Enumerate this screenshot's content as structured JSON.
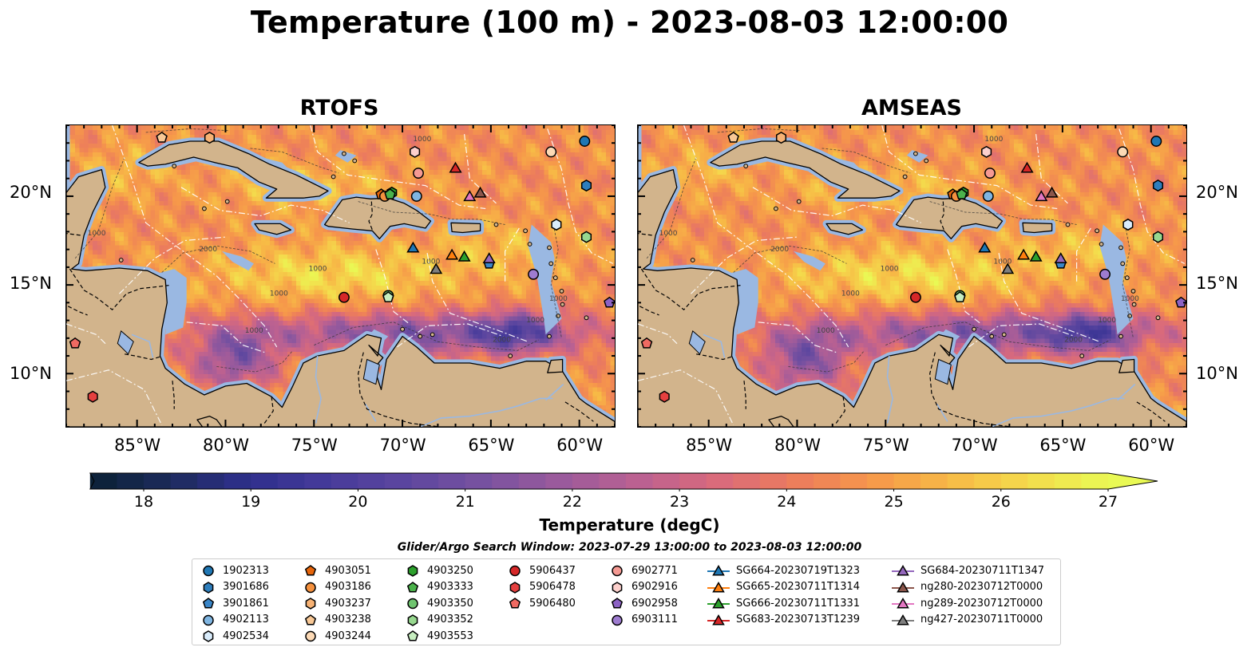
{
  "title": "Temperature (100 m) - 2023-08-03 12:00:00",
  "panels": [
    {
      "name": "RTOFS"
    },
    {
      "name": "AMSEAS"
    }
  ],
  "colorbar": {
    "label": "Temperature (degC)",
    "ticks": [
      "18",
      "19",
      "20",
      "21",
      "22",
      "23",
      "24",
      "25",
      "26",
      "27"
    ],
    "min": 17.5,
    "max": 27.0,
    "step": 0.25,
    "extend": "both",
    "colormap": "thermal",
    "colors": [
      "#0a2034",
      "#1c2b5a",
      "#2e2f8c",
      "#453a9a",
      "#5c469f",
      "#7751a0",
      "#9a5a9c",
      "#bb6191",
      "#d96a7c",
      "#ec7c5c",
      "#f6984a",
      "#f7ba46",
      "#f4dc4c",
      "#e9f954"
    ]
  },
  "search_window": "Glider/Argo Search Window: 2023-07-29 13:00:00 to 2023-08-03 12:00:00",
  "land_color": "#d2b48c",
  "shallow_color": "#9ab8e2",
  "chart_data": [
    {
      "type": "heatmap",
      "title": "RTOFS",
      "xlabel": "",
      "ylabel": "",
      "xlim": [
        -89,
        -58
      ],
      "ylim": [
        7,
        24
      ],
      "x_ticks": [
        "85°W",
        "80°W",
        "75°W",
        "70°W",
        "65°W",
        "60°W"
      ],
      "x_tick_values": [
        -85,
        -80,
        -75,
        -70,
        -65,
        -60
      ],
      "y_ticks": [
        "10°N",
        "15°N",
        "20°N"
      ],
      "y_tick_values": [
        10,
        15,
        20
      ],
      "grid": false
    },
    {
      "type": "heatmap",
      "title": "AMSEAS",
      "xlabel": "",
      "ylabel": "",
      "xlim": [
        -89,
        -58
      ],
      "ylim": [
        7,
        24
      ],
      "x_ticks": [
        "85°W",
        "80°W",
        "75°W",
        "70°W",
        "65°W",
        "60°W"
      ],
      "x_tick_values": [
        -85,
        -80,
        -75,
        -70,
        -65,
        -60
      ],
      "y_ticks": [
        "10°N",
        "15°N",
        "20°N"
      ],
      "y_tick_values": [
        10,
        15,
        20
      ],
      "grid": false
    }
  ],
  "observations": [
    {
      "id": "1902313",
      "kind": "argo",
      "marker": "circle",
      "color": "#1f77b4",
      "lon": -59.7,
      "lat": 23.1
    },
    {
      "id": "3901686",
      "kind": "argo",
      "marker": "hexagon",
      "color": "#2e7ebc",
      "lon": -59.6,
      "lat": 20.6
    },
    {
      "id": "3901861",
      "kind": "argo",
      "marker": "pentagon",
      "color": "#3a86c8",
      "lon": -65.1,
      "lat": 16.2
    },
    {
      "id": "4902113",
      "kind": "argo",
      "marker": "circle",
      "color": "#7fb5e1",
      "lon": -69.2,
      "lat": 20.0
    },
    {
      "id": "4902534",
      "kind": "argo",
      "marker": "hexagon",
      "color": "#d9ecfb",
      "lon": -61.3,
      "lat": 18.4
    },
    {
      "id": "4903051",
      "kind": "argo",
      "marker": "pentagon",
      "color": "#e6650b",
      "lon": -71.2,
      "lat": 20.1
    },
    {
      "id": "4903186",
      "kind": "argo",
      "marker": "circle",
      "color": "#f5913e",
      "lon": -71.0,
      "lat": 20.0
    },
    {
      "id": "4903237",
      "kind": "argo",
      "marker": "hexagon",
      "color": "#f7b274",
      "lon": -80.9,
      "lat": 23.3
    },
    {
      "id": "4903238",
      "kind": "argo",
      "marker": "pentagon",
      "color": "#f8c896",
      "lon": -83.6,
      "lat": 23.3
    },
    {
      "id": "4903244",
      "kind": "argo",
      "marker": "circle",
      "color": "#fcd9b5",
      "lon": -61.6,
      "lat": 22.5
    },
    {
      "id": "4903250",
      "kind": "argo",
      "marker": "hexagon",
      "color": "#2ca02c",
      "lon": -70.6,
      "lat": 20.2
    },
    {
      "id": "4903333",
      "kind": "argo",
      "marker": "pentagon",
      "color": "#4bb24b",
      "lon": -70.7,
      "lat": 20.1
    },
    {
      "id": "4903350",
      "kind": "argo",
      "marker": "circle",
      "color": "#6fc46f",
      "lon": -70.8,
      "lat": 14.4
    },
    {
      "id": "4903352",
      "kind": "argo",
      "marker": "hexagon",
      "color": "#97d88f",
      "lon": -59.6,
      "lat": 17.7
    },
    {
      "id": "4903553",
      "kind": "argo",
      "marker": "pentagon",
      "color": "#c7eec0",
      "lon": -70.8,
      "lat": 14.3
    },
    {
      "id": "5906437",
      "kind": "argo",
      "marker": "circle",
      "color": "#d62728",
      "lon": -73.3,
      "lat": 14.3
    },
    {
      "id": "5906478",
      "kind": "argo",
      "marker": "hexagon",
      "color": "#e5403f",
      "lon": -87.5,
      "lat": 8.7
    },
    {
      "id": "5906480",
      "kind": "argo",
      "marker": "pentagon",
      "color": "#ef6a62",
      "lon": -88.5,
      "lat": 11.7
    },
    {
      "id": "6902771",
      "kind": "argo",
      "marker": "circle",
      "color": "#f59a93",
      "lon": -69.1,
      "lat": 21.3
    },
    {
      "id": "6902916",
      "kind": "argo",
      "marker": "hexagon",
      "color": "#fcd0cc",
      "lon": -69.3,
      "lat": 22.5
    },
    {
      "id": "6902958",
      "kind": "argo",
      "marker": "pentagon",
      "color": "#8c62c4",
      "lon": -58.3,
      "lat": 14.0
    },
    {
      "id": "6903111",
      "kind": "argo",
      "marker": "circle",
      "color": "#9e7cd0",
      "lon": -62.6,
      "lat": 15.6
    },
    {
      "id": "SG664-20230719T1323",
      "kind": "glider",
      "marker": "triangle",
      "color": "#1f77b4",
      "lon": -69.4,
      "lat": 17.1
    },
    {
      "id": "SG665-20230711T1314",
      "kind": "glider",
      "marker": "triangle",
      "color": "#ff7f0e",
      "lon": -67.2,
      "lat": 16.7
    },
    {
      "id": "SG666-20230711T1331",
      "kind": "glider",
      "marker": "triangle",
      "color": "#2ca02c",
      "lon": -66.5,
      "lat": 16.6
    },
    {
      "id": "SG683-20230713T1239",
      "kind": "glider",
      "marker": "triangle",
      "color": "#d62728",
      "lon": -67.0,
      "lat": 21.6
    },
    {
      "id": "SG684-20230711T1347",
      "kind": "glider",
      "marker": "triangle",
      "color": "#9467bd",
      "lon": -65.1,
      "lat": 16.5
    },
    {
      "id": "ng280-20230712T0000",
      "kind": "glider",
      "marker": "triangle",
      "color": "#8c564b",
      "lon": -65.6,
      "lat": 20.2
    },
    {
      "id": "ng289-20230712T0000",
      "kind": "glider",
      "marker": "triangle",
      "color": "#e377c2",
      "lon": -66.2,
      "lat": 20.0
    },
    {
      "id": "ng427-20230711T0000",
      "kind": "glider",
      "marker": "triangle",
      "color": "#7f7f7f",
      "lon": -68.1,
      "lat": 15.9
    }
  ]
}
